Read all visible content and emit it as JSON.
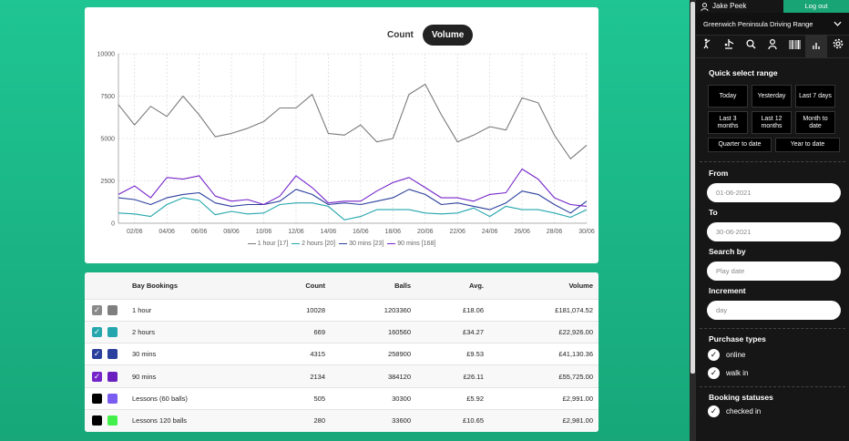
{
  "chart": {
    "toggle": {
      "count_label": "Count",
      "volume_label": "Volume",
      "active": "Volume"
    },
    "y_ticks": [
      "10000",
      "7500",
      "5000",
      "2500",
      "0"
    ],
    "x_ticks": [
      "02/06",
      "04/06",
      "06/06",
      "08/06",
      "10/06",
      "12/06",
      "14/06",
      "16/06",
      "18/06",
      "20/06",
      "22/06",
      "24/06",
      "26/06",
      "28/06",
      "30/06"
    ],
    "legend": [
      {
        "label": "1 hour [17]",
        "color": "#7a7a7a"
      },
      {
        "label": "2 hours [20]",
        "color": "#23a6ad"
      },
      {
        "label": "30 mins [23]",
        "color": "#2b3f9c"
      },
      {
        "label": "90 mins [168]",
        "color": "#7424c9"
      }
    ]
  },
  "chart_data": {
    "type": "line",
    "x": [
      "01/06",
      "02/06",
      "03/06",
      "04/06",
      "05/06",
      "06/06",
      "07/06",
      "08/06",
      "09/06",
      "10/06",
      "11/06",
      "12/06",
      "13/06",
      "14/06",
      "15/06",
      "16/06",
      "17/06",
      "18/06",
      "19/06",
      "20/06",
      "21/06",
      "22/06",
      "23/06",
      "24/06",
      "25/06",
      "26/06",
      "27/06",
      "28/06",
      "29/06",
      "30/06"
    ],
    "ylim": [
      0,
      10000
    ],
    "grid": true,
    "legend_position": "bottom",
    "series": [
      {
        "name": "1 hour [17]",
        "color": "#7a7a7a",
        "values": [
          7000,
          5800,
          6900,
          6300,
          7500,
          6400,
          5100,
          5300,
          5600,
          6000,
          6800,
          6800,
          7600,
          5300,
          5200,
          5800,
          4800,
          5000,
          7600,
          8200,
          6400,
          4800,
          5200,
          5700,
          5500,
          7400,
          7100,
          5200,
          3800,
          4600
        ]
      },
      {
        "name": "2 hours [20]",
        "color": "#23a6ad",
        "values": [
          600,
          550,
          400,
          1100,
          1500,
          1350,
          500,
          700,
          550,
          600,
          1100,
          1200,
          1200,
          1000,
          200,
          400,
          800,
          800,
          800,
          600,
          550,
          600,
          900,
          400,
          1000,
          800,
          800,
          600,
          350,
          800
        ]
      },
      {
        "name": "30 mins [23]",
        "color": "#2b3f9c",
        "values": [
          1500,
          1400,
          1100,
          1500,
          1700,
          1800,
          1200,
          1000,
          1100,
          1100,
          1300,
          2000,
          1700,
          1100,
          1200,
          1100,
          1300,
          1500,
          2000,
          1700,
          1100,
          1200,
          1000,
          800,
          1200,
          1900,
          1700,
          1100,
          600,
          1300
        ]
      },
      {
        "name": "90 mins [168]",
        "color": "#7424c9",
        "values": [
          1700,
          2200,
          1500,
          2700,
          2600,
          2800,
          1600,
          1300,
          1400,
          1100,
          1600,
          2800,
          2100,
          1200,
          1300,
          1300,
          1900,
          2400,
          2700,
          2100,
          1500,
          1500,
          1300,
          1700,
          1800,
          3200,
          2600,
          1500,
          1100,
          1000
        ]
      }
    ]
  },
  "table": {
    "headers": {
      "name": "Bay Bookings",
      "count": "Count",
      "balls": "Balls",
      "avg": "Avg.",
      "volume": "Volume"
    },
    "rows": [
      {
        "name": "1 hour",
        "count": "10028",
        "balls": "1203360",
        "avg": "£18.06",
        "volume": "£181,074.52",
        "checked": true,
        "check_color": "#8a8a8a",
        "swatch": "#7f7f7f"
      },
      {
        "name": "2 hours",
        "count": "669",
        "balls": "160560",
        "avg": "£34.27",
        "volume": "£22,926.00",
        "checked": true,
        "check_color": "#26a6ad",
        "swatch": "#23a6ad"
      },
      {
        "name": "30 mins",
        "count": "4315",
        "balls": "258900",
        "avg": "£9.53",
        "volume": "£41,130.36",
        "checked": true,
        "check_color": "#2b3f9c",
        "swatch": "#2b3f9c"
      },
      {
        "name": "90 mins",
        "count": "2134",
        "balls": "384120",
        "avg": "£26.11",
        "volume": "£55,725.00",
        "checked": true,
        "check_color": "#7424c9",
        "swatch": "#6a1ec0"
      },
      {
        "name": "Lessons (60 balls)",
        "count": "505",
        "balls": "30300",
        "avg": "£5.92",
        "volume": "£2,991.00",
        "checked": false,
        "check_color": "#000000",
        "swatch": "#7b5cf0"
      },
      {
        "name": "Lessons 120 balls",
        "count": "280",
        "balls": "33600",
        "avg": "£10.65",
        "volume": "£2,981.00",
        "checked": false,
        "check_color": "#000000",
        "swatch": "#43f04a"
      }
    ]
  },
  "sidebar": {
    "user_name": "Jake Peek",
    "logout_label": "Log out",
    "site_name": "Greenwich Peninsula Driving Range",
    "quick_select_label": "Quick select range",
    "quick_buttons": [
      "Today",
      "Yesterday",
      "Last 7 days",
      "Last 3 months",
      "Last 12 months",
      "Month to date"
    ],
    "quick_buttons_row2": [
      "Quarter to date",
      "Year to date"
    ],
    "from_label": "From",
    "from_value": "01-06-2021",
    "to_label": "To",
    "to_value": "30-06-2021",
    "search_label": "Search by",
    "search_value": "Play date",
    "increment_label": "Increment",
    "increment_value": "day",
    "purchase_types_label": "Purchase types",
    "purchase_types": [
      "online",
      "walk in"
    ],
    "booking_statuses_label": "Booking statuses",
    "booking_statuses": [
      "checked in"
    ]
  }
}
